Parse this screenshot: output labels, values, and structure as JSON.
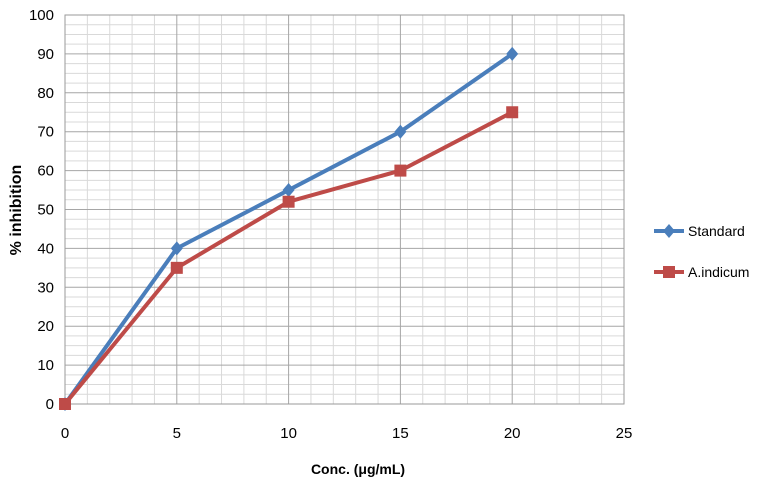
{
  "chart_data": {
    "type": "line",
    "xlabel": "Conc. (μg/mL)",
    "ylabel": "% inhibition",
    "xlim": [
      0,
      25
    ],
    "ylim": [
      0,
      100
    ],
    "x_ticks": [
      0,
      5,
      10,
      15,
      20,
      25
    ],
    "y_ticks": [
      0,
      10,
      20,
      30,
      40,
      50,
      60,
      70,
      80,
      90,
      100
    ],
    "grid": true,
    "legend_position": "right",
    "series": [
      {
        "name": "Standard",
        "color": "#4a7ebb",
        "marker": "diamond",
        "x": [
          0,
          5,
          10,
          15,
          20
        ],
        "y": [
          0,
          40,
          55,
          70,
          90
        ]
      },
      {
        "name": "A.indicum",
        "color": "#be4b48",
        "marker": "square",
        "x": [
          0,
          5,
          10,
          15,
          20
        ],
        "y": [
          0,
          35,
          52,
          60,
          75
        ]
      }
    ]
  }
}
